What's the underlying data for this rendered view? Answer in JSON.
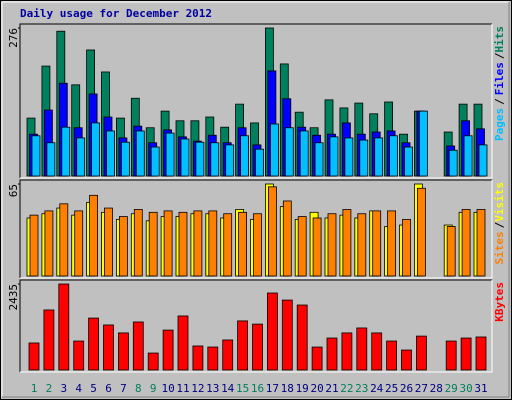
{
  "chart_data": [
    {
      "type": "bar",
      "title": "Daily usage for December 2012",
      "ylim": [
        0,
        276
      ],
      "yticks": [
        276
      ],
      "legend_separator": "/",
      "series": [
        {
          "name": "Hits",
          "color": "#00805c",
          "values": [
            108,
            205,
            270,
            170,
            235,
            194,
            108,
            145,
            90,
            121,
            103,
            103,
            110,
            91,
            134,
            99,
            276,
            209,
            119,
            90,
            142,
            127,
            136,
            116,
            138,
            78,
            121,
            0,
            82,
            134,
            134
          ]
        },
        {
          "name": "Files",
          "color": "#0000ff",
          "values": [
            78,
            123,
            173,
            90,
            153,
            110,
            71,
            93,
            62,
            86,
            73,
            65,
            76,
            62,
            90,
            58,
            196,
            144,
            91,
            76,
            78,
            99,
            78,
            82,
            84,
            62,
            121,
            0,
            56,
            103,
            88
          ]
        },
        {
          "name": "Pages",
          "color": "#00c0ff",
          "values": [
            75,
            62,
            91,
            71,
            99,
            84,
            63,
            84,
            54,
            80,
            69,
            63,
            62,
            58,
            75,
            50,
            97,
            90,
            84,
            62,
            73,
            71,
            67,
            71,
            75,
            54,
            121,
            0,
            48,
            75,
            58
          ]
        }
      ]
    },
    {
      "type": "bar",
      "ylim": [
        0,
        65
      ],
      "yticks": [
        65
      ],
      "legend_separator": "/",
      "series": [
        {
          "name": "Visits",
          "color": "#ffff00",
          "values": [
            41,
            44,
            48,
            43,
            52,
            45,
            40,
            44,
            39,
            42,
            42,
            44,
            44,
            41,
            47,
            40,
            65,
            49,
            40,
            45,
            41,
            43,
            41,
            46,
            35,
            36,
            65,
            0,
            36,
            45,
            45
          ]
        },
        {
          "name": "Sites",
          "color": "#ff8000",
          "values": [
            43,
            46,
            51,
            46,
            57,
            48,
            42,
            47,
            45,
            46,
            45,
            46,
            46,
            44,
            45,
            44,
            63,
            53,
            42,
            41,
            44,
            47,
            44,
            46,
            46,
            40,
            62,
            0,
            35,
            47,
            47
          ]
        }
      ]
    },
    {
      "type": "bar",
      "ylim": [
        0,
        2435
      ],
      "yticks": [
        2435
      ],
      "categories": [
        "1",
        "2",
        "3",
        "4",
        "5",
        "6",
        "7",
        "8",
        "9",
        "10",
        "11",
        "12",
        "13",
        "14",
        "15",
        "16",
        "17",
        "18",
        "19",
        "20",
        "21",
        "22",
        "23",
        "24",
        "25",
        "26",
        "27",
        "28",
        "29",
        "30",
        "31"
      ],
      "category_colors": [
        "#00805c",
        "#00805c",
        "#000080",
        "#000080",
        "#000080",
        "#000080",
        "#000080",
        "#00805c",
        "#00805c",
        "#000080",
        "#000080",
        "#000080",
        "#000080",
        "#000080",
        "#00805c",
        "#00805c",
        "#000080",
        "#000080",
        "#000080",
        "#000080",
        "#000080",
        "#00805c",
        "#00805c",
        "#000080",
        "#000080",
        "#000080",
        "#000080",
        "#000080",
        "#00805c",
        "#00805c",
        "#000080"
      ],
      "series": [
        {
          "name": "KBytes",
          "color": "#ff0000",
          "values": [
            765,
            1700,
            2435,
            820,
            1470,
            1275,
            1050,
            1360,
            480,
            1130,
            1530,
            680,
            650,
            850,
            1390,
            1300,
            2180,
            1980,
            1840,
            650,
            905,
            1050,
            1190,
            1050,
            820,
            565,
            960,
            0,
            820,
            905,
            935
          ]
        }
      ]
    }
  ]
}
